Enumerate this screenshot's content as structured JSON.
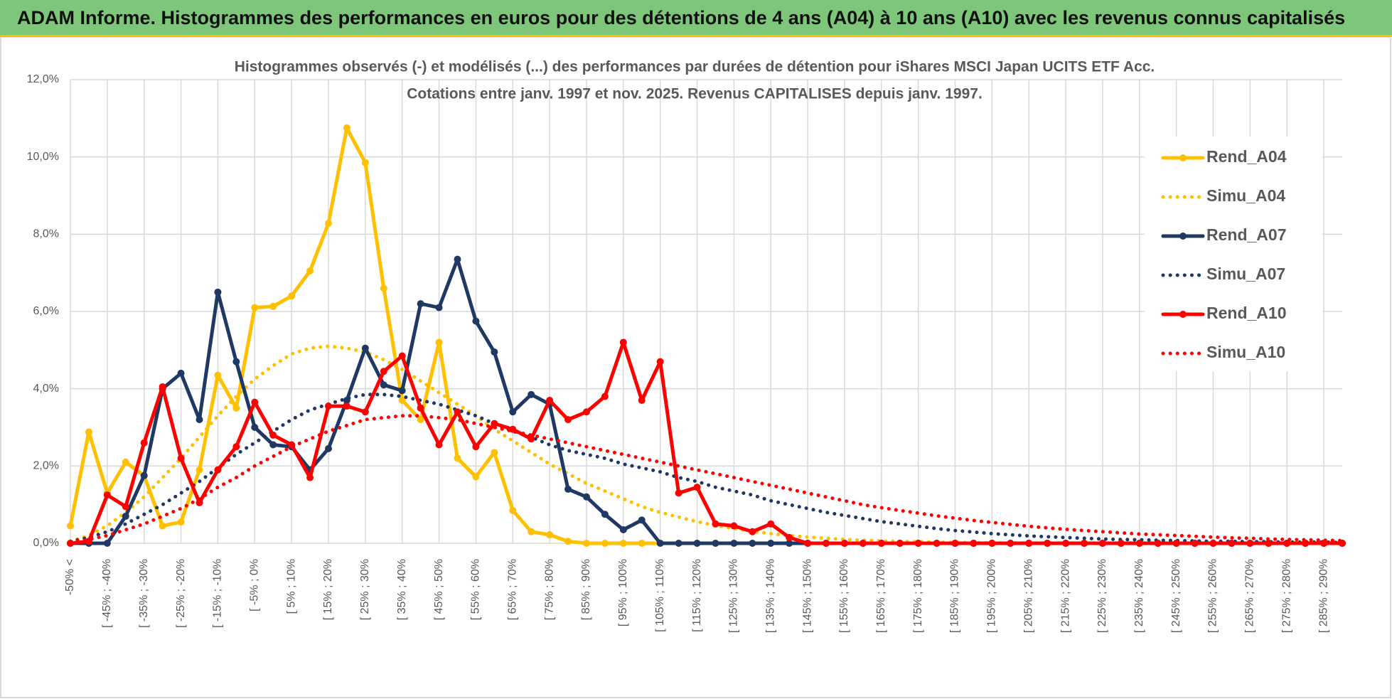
{
  "header": {
    "title": "ADAM Informe. Histogrammes des performances en euros pour des détentions de 4 ans (A04) à 10 ans (A10) avec les revenus connus capitalisés"
  },
  "chart_data": {
    "type": "line",
    "title": "Histogrammes observés (-) et modélisés (...) des performances par durées de détention pour iShares MSCI Japan UCITS ETF Acc.",
    "subtitle": "Cotations entre janv. 1997 et nov. 2025. Revenus CAPITALISES depuis janv. 1997.",
    "categories": [
      "-50% <",
      null,
      "[ -45% ; -40%",
      null,
      "[ -35% ; -30%",
      null,
      "[ -25% ; -20%",
      null,
      "[ -15% ; -10%",
      null,
      "[ -5% ; 0%",
      null,
      "[ 5% ; 10%",
      null,
      "[ 15% ; 20%",
      null,
      "[ 25% ; 30%",
      null,
      "[ 35% ; 40%",
      null,
      "[ 45% ; 50%",
      null,
      "[ 55% ; 60%",
      null,
      "[ 65% ; 70%",
      null,
      "[ 75% ; 80%",
      null,
      "[ 85% ; 90%",
      null,
      "[ 95% ; 100%",
      null,
      "[ 105% ; 110%",
      null,
      "[ 115% ; 120%",
      null,
      "[ 125% ; 130%",
      null,
      "[ 135% ; 140%",
      null,
      "[ 145% ; 150%",
      null,
      "[ 155% ; 160%",
      null,
      "[ 165% ; 170%",
      null,
      "[ 175% ; 180%",
      null,
      "[ 185% ; 190%",
      null,
      "[ 195% ; 200%",
      null,
      "[ 205% ; 210%",
      null,
      "[ 215% ; 220%",
      null,
      "[ 225% ; 230%",
      null,
      "[ 235% ; 240%",
      null,
      "[ 245% ; 250%",
      null,
      "[ 255% ; 260%",
      null,
      "[ 265% ; 270%",
      null,
      "[ 275% ; 280%",
      null,
      "[ 285% ; 290%",
      null
    ],
    "series": [
      {
        "name": "Rend_A04",
        "color": "#ffc000",
        "style": "solid",
        "markers": true,
        "values": [
          0.45,
          2.88,
          1.3,
          2.1,
          1.75,
          0.45,
          0.55,
          1.9,
          4.35,
          3.5,
          6.1,
          6.13,
          6.4,
          7.05,
          8.28,
          10.75,
          9.85,
          6.6,
          3.7,
          3.2,
          5.2,
          2.2,
          1.72,
          2.35,
          0.85,
          0.3,
          0.22,
          0.05,
          0,
          0,
          0,
          0,
          0,
          0,
          0,
          0,
          0,
          0,
          0,
          0,
          0,
          0,
          0,
          0,
          0,
          0,
          0,
          0,
          0,
          0,
          0,
          0,
          0,
          0,
          0,
          0,
          0,
          0,
          0,
          0,
          0,
          0,
          0,
          0,
          0,
          0,
          0,
          0,
          0,
          0
        ]
      },
      {
        "name": "Simu_A04",
        "color": "#ffc000",
        "style": "dotted",
        "markers": false,
        "values": [
          0.05,
          0.2,
          0.45,
          0.8,
          1.2,
          1.7,
          2.2,
          2.75,
          3.3,
          3.8,
          4.25,
          4.6,
          4.9,
          5.05,
          5.1,
          5.05,
          4.95,
          4.75,
          4.5,
          4.2,
          3.9,
          3.6,
          3.3,
          2.95,
          2.65,
          2.35,
          2.05,
          1.8,
          1.55,
          1.35,
          1.15,
          0.95,
          0.8,
          0.68,
          0.56,
          0.46,
          0.38,
          0.31,
          0.25,
          0.2,
          0.16,
          0.13,
          0.1,
          0.08,
          0.06,
          0.05,
          0.04,
          0.03,
          0.02,
          0.02,
          0.01,
          0.01,
          0.01,
          0.01,
          0.01,
          0.01,
          0.01,
          0.01,
          0.01,
          0.01,
          0.01,
          0.01,
          0.01,
          0.01,
          0.01,
          0.01,
          0.01,
          0.01,
          0.01,
          0.01
        ]
      },
      {
        "name": "Rend_A07",
        "color": "#1f3864",
        "style": "solid",
        "markers": true,
        "values": [
          0,
          0,
          0,
          0.7,
          1.75,
          4.0,
          4.4,
          3.2,
          6.5,
          4.7,
          3.0,
          2.55,
          2.5,
          1.9,
          2.45,
          3.7,
          5.05,
          4.1,
          3.95,
          6.2,
          6.1,
          7.35,
          5.75,
          4.95,
          3.4,
          3.85,
          3.6,
          1.4,
          1.2,
          0.75,
          0.35,
          0.6,
          0,
          0,
          0,
          0,
          0,
          0,
          0,
          0,
          0,
          0,
          0,
          0,
          0,
          0,
          0,
          0,
          0,
          0,
          0,
          0,
          0,
          0,
          0,
          0,
          0,
          0,
          0,
          0,
          0,
          0,
          0,
          0,
          0,
          0,
          0,
          0,
          0,
          0
        ]
      },
      {
        "name": "Simu_A07",
        "color": "#1f3864",
        "style": "dotted",
        "markers": false,
        "values": [
          0.05,
          0.15,
          0.3,
          0.5,
          0.75,
          1.0,
          1.3,
          1.6,
          1.95,
          2.3,
          2.6,
          2.9,
          3.2,
          3.45,
          3.6,
          3.75,
          3.85,
          3.85,
          3.8,
          3.7,
          3.6,
          3.45,
          3.3,
          3.1,
          2.9,
          2.75,
          2.55,
          2.4,
          2.3,
          2.2,
          2.05,
          1.95,
          1.85,
          1.7,
          1.6,
          1.45,
          1.35,
          1.25,
          1.1,
          1.0,
          0.9,
          0.8,
          0.72,
          0.64,
          0.56,
          0.5,
          0.44,
          0.38,
          0.33,
          0.29,
          0.25,
          0.22,
          0.19,
          0.17,
          0.15,
          0.13,
          0.11,
          0.1,
          0.09,
          0.08,
          0.07,
          0.06,
          0.05,
          0.05,
          0.04,
          0.04,
          0.03,
          0.03,
          0.03,
          0.02
        ]
      },
      {
        "name": "Rend_A10",
        "color": "#ff0000",
        "style": "solid",
        "markers": true,
        "values": [
          0,
          0.05,
          1.25,
          0.95,
          2.6,
          4.05,
          2.2,
          1.05,
          1.9,
          2.5,
          3.65,
          2.8,
          2.55,
          1.7,
          3.55,
          3.55,
          3.4,
          4.45,
          4.85,
          3.5,
          2.55,
          3.4,
          2.5,
          3.1,
          2.95,
          2.7,
          3.7,
          3.2,
          3.4,
          3.8,
          5.2,
          3.7,
          4.7,
          1.3,
          1.45,
          0.5,
          0.45,
          0.3,
          0.5,
          0.15,
          0,
          0,
          0,
          0,
          0,
          0,
          0,
          0,
          0,
          0,
          0,
          0,
          0,
          0,
          0,
          0,
          0,
          0,
          0,
          0,
          0,
          0,
          0,
          0,
          0,
          0,
          0,
          0,
          0,
          0
        ]
      },
      {
        "name": "Simu_A10",
        "color": "#ff0000",
        "style": "dotted",
        "markers": false,
        "values": [
          0.05,
          0.1,
          0.2,
          0.35,
          0.5,
          0.7,
          0.9,
          1.15,
          1.45,
          1.7,
          2.0,
          2.25,
          2.5,
          2.7,
          2.9,
          3.05,
          3.2,
          3.25,
          3.3,
          3.3,
          3.25,
          3.2,
          3.1,
          3.0,
          2.9,
          2.8,
          2.7,
          2.6,
          2.5,
          2.4,
          2.3,
          2.2,
          2.1,
          2.0,
          1.9,
          1.8,
          1.7,
          1.6,
          1.5,
          1.4,
          1.3,
          1.2,
          1.1,
          1.0,
          0.92,
          0.85,
          0.78,
          0.71,
          0.65,
          0.59,
          0.54,
          0.49,
          0.44,
          0.4,
          0.36,
          0.33,
          0.3,
          0.27,
          0.24,
          0.22,
          0.2,
          0.18,
          0.16,
          0.14,
          0.13,
          0.11,
          0.1,
          0.09,
          0.08,
          0.07
        ]
      }
    ],
    "ylim": [
      0,
      12
    ],
    "yticks": [
      {
        "value": 0,
        "label": "0,0%"
      },
      {
        "value": 2,
        "label": "2,0%"
      },
      {
        "value": 4,
        "label": "4,0%"
      },
      {
        "value": 6,
        "label": "6,0%"
      },
      {
        "value": 8,
        "label": "8,0%"
      },
      {
        "value": 10,
        "label": "10,0%"
      },
      {
        "value": 12,
        "label": "12,0%"
      }
    ],
    "grid": true,
    "legend": "right"
  }
}
